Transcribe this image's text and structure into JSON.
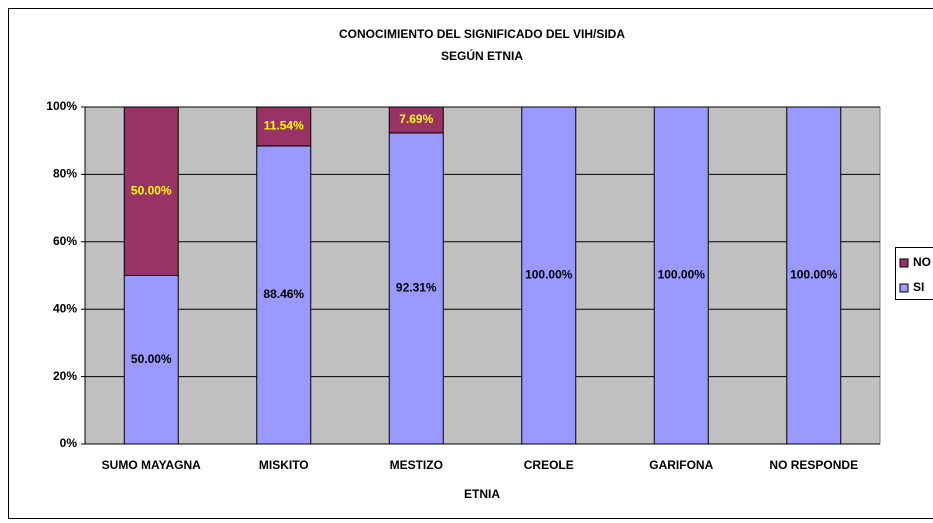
{
  "chart_data": {
    "type": "stacked_bar",
    "title": "CONOCIMIENTO DEL SIGNIFICADO DEL VIH/SIDA",
    "subtitle": "SEGÚN ETNIA",
    "x_label": "ETNIA",
    "categories": [
      "SUMO MAYAGNA",
      "MISKITO",
      "MESTIZO",
      "CREOLE",
      "GARIFONA",
      "NO RESPONDE"
    ],
    "series": [
      {
        "name": "SI",
        "color": "#9999ff",
        "label_color": "#000000",
        "values": [
          50,
          88.46,
          92.31,
          100,
          100,
          100
        ],
        "value_labels": [
          "50.00%",
          "88.46%",
          "92.31%",
          "100.00%",
          "100.00%",
          "100.00%"
        ]
      },
      {
        "name": "NO",
        "color": "#993366",
        "label_color": "#ffff00",
        "values": [
          50,
          11.54,
          7.69,
          0,
          0,
          0
        ],
        "value_labels": [
          "50.00%",
          "11.54%",
          "7.69%",
          null,
          null,
          null
        ]
      }
    ],
    "ylim": [
      0,
      100
    ],
    "yticks": [
      {
        "value": 0,
        "label": "0%"
      },
      {
        "value": 20,
        "label": "20%"
      },
      {
        "value": 40,
        "label": "40%"
      },
      {
        "value": 60,
        "label": "60%"
      },
      {
        "value": 80,
        "label": "80%"
      },
      {
        "value": 100,
        "label": "100%"
      }
    ],
    "grid": true,
    "legend": "right",
    "plot_background": "#c0c0c0"
  }
}
